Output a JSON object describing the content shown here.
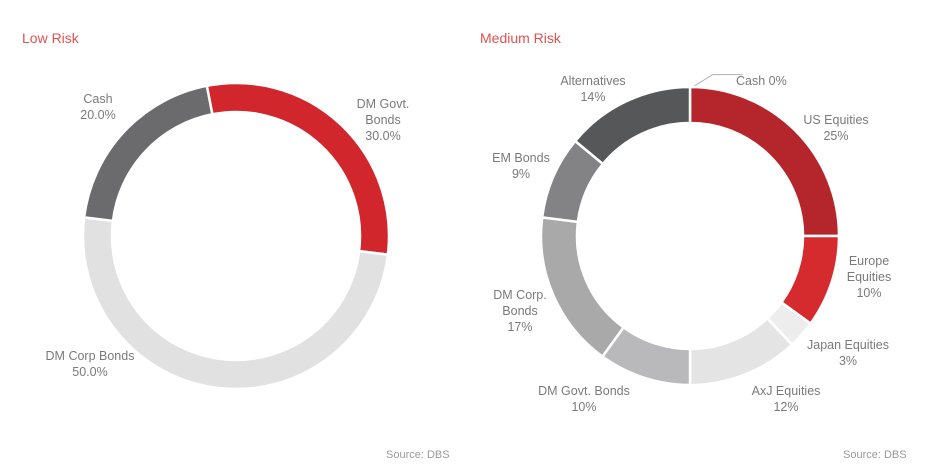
{
  "chart_data": [
    {
      "type": "pie",
      "title": "Low Risk",
      "source": "Source: DBS",
      "donut": true,
      "slices": [
        {
          "name": "DM Govt. Bonds",
          "value": 30.0,
          "label": "30.0%",
          "color": "#d0262c"
        },
        {
          "name": "DM Corp Bonds",
          "value": 50.0,
          "label": "50.0%",
          "color": "#e1e1e2"
        },
        {
          "name": "Cash",
          "value": 20.0,
          "label": "20.0%",
          "color": "#6b6b6e"
        }
      ]
    },
    {
      "type": "pie",
      "title": "Medium Risk",
      "source": "Source: DBS",
      "donut": true,
      "slices": [
        {
          "name": "Cash",
          "value": 0,
          "label": "0%",
          "color": "#b4262c"
        },
        {
          "name": "US Equities",
          "value": 25,
          "label": "25%",
          "color": "#b4262c"
        },
        {
          "name": "Europe Equities",
          "value": 10,
          "label": "10%",
          "color": "#d52a2e"
        },
        {
          "name": "Japan Equities",
          "value": 3,
          "label": "3%",
          "color": "#ededed"
        },
        {
          "name": "AxJ Equities",
          "value": 12,
          "label": "12%",
          "color": "#e4e4e5"
        },
        {
          "name": "DM Govt. Bonds",
          "value": 10,
          "label": "10%",
          "color": "#b9b9bc"
        },
        {
          "name": "DM Corp. Bonds",
          "value": 17,
          "label": "17%",
          "color": "#a9a9a9"
        },
        {
          "name": "EM Bonds",
          "value": 9,
          "label": "9%",
          "color": "#838386"
        },
        {
          "name": "Alternatives",
          "value": 14,
          "label": "14%",
          "color": "#555758"
        }
      ]
    }
  ]
}
